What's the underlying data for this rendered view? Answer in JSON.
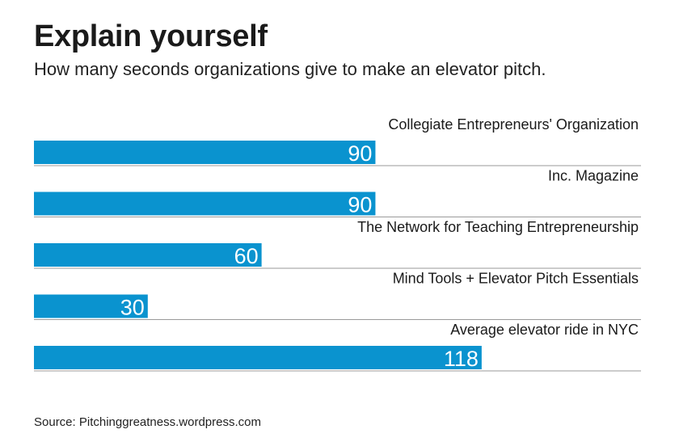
{
  "header": {
    "title": "Explain yourself",
    "subtitle": "How many seconds organizations give to make an elevator pitch."
  },
  "footer": {
    "source": "Source: Pitchinggreatness.wordpress.com"
  },
  "colors": {
    "bar": "#0a93cf",
    "bar_label": "#ffffff",
    "baseline": "#9a9a9a"
  },
  "chart_data": {
    "type": "bar",
    "orientation": "horizontal",
    "categories": [
      "Collegiate Entrepreneurs' Organization",
      "Inc. Magazine",
      "The Network for Teaching Entrepreneurship",
      "Mind Tools + Elevator Pitch Essentials",
      "Average elevator ride in NYC"
    ],
    "values": [
      90,
      90,
      60,
      30,
      118
    ],
    "data_labels": [
      "90",
      "90",
      "60",
      "30",
      "118"
    ],
    "xlim": [
      0,
      160
    ],
    "grid": false,
    "legend": "none"
  }
}
